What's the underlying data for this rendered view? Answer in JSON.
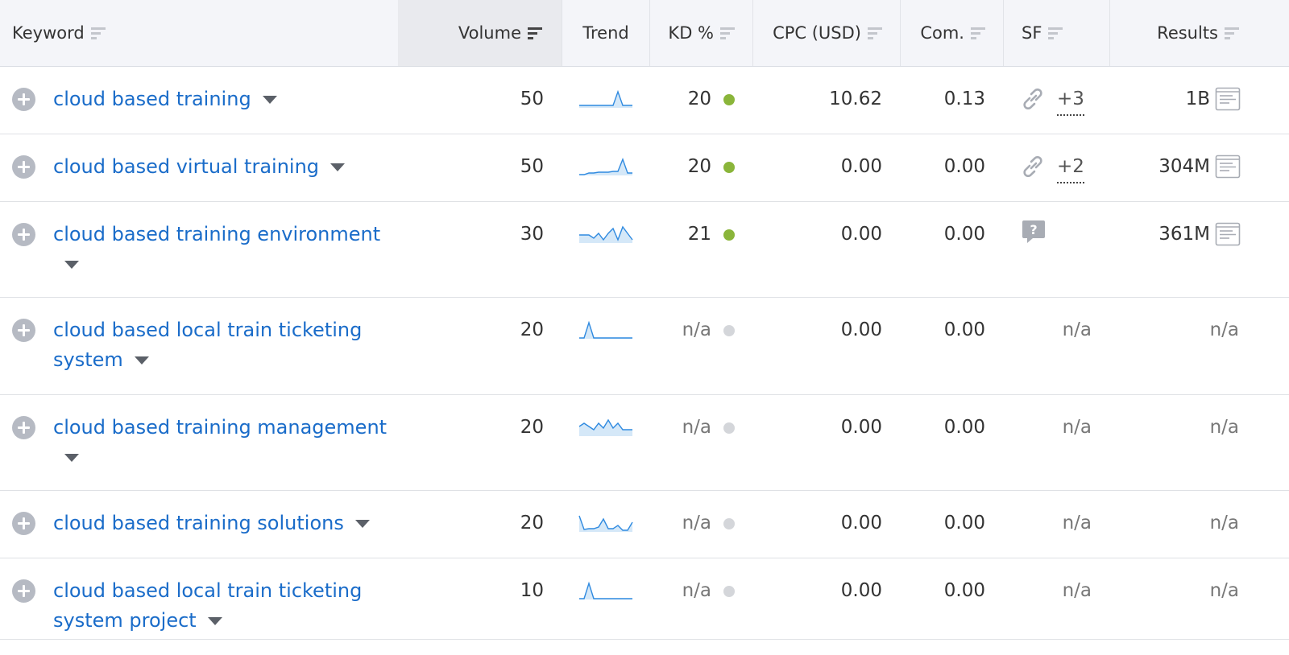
{
  "colors": {
    "link": "#1a6cc9",
    "kd_easy": "#8ab53a",
    "kd_na": "#d4d6da",
    "trend_line": "#2f8ae0",
    "trend_fill": "#d5e8f8"
  },
  "header": {
    "keyword": "Keyword",
    "volume": "Volume",
    "trend": "Trend",
    "kd": "KD %",
    "cpc": "CPC (USD)",
    "com": "Com.",
    "sf": "SF",
    "results": "Results"
  },
  "sort_column": "volume",
  "rows": [
    {
      "keyword": "cloud based training",
      "volume": "50",
      "trend": [
        0.15,
        0.15,
        0.15,
        0.15,
        0.15,
        0.15,
        0.15,
        0.15,
        1.0,
        0.15,
        0.15,
        0.15
      ],
      "kd": "20",
      "kd_status": "easy",
      "cpc": "10.62",
      "com": "0.13",
      "sf_icon": "link-icon",
      "sf_extra": "+3",
      "results": "1B",
      "results_icon": "serp-page-icon"
    },
    {
      "keyword": "cloud based virtual training",
      "volume": "50",
      "trend": [
        0.05,
        0.05,
        0.15,
        0.15,
        0.2,
        0.2,
        0.2,
        0.25,
        0.25,
        1.0,
        0.15,
        0.15
      ],
      "kd": "20",
      "kd_status": "easy",
      "cpc": "0.00",
      "com": "0.00",
      "sf_icon": "link-icon",
      "sf_extra": "+2",
      "results": "304M",
      "results_icon": "serp-page-icon"
    },
    {
      "keyword": "cloud based training environment",
      "volume": "30",
      "trend": [
        0.5,
        0.5,
        0.5,
        0.3,
        0.6,
        0.2,
        0.6,
        0.9,
        0.2,
        1.0,
        0.6,
        0.2
      ],
      "kd": "21",
      "kd_status": "easy",
      "cpc": "0.00",
      "com": "0.00",
      "sf_icon": "qa-icon",
      "sf_extra": "",
      "results": "361M",
      "results_icon": "serp-page-icon"
    },
    {
      "keyword": "cloud based local train ticketing system",
      "volume": "20",
      "trend": [
        0.05,
        0.05,
        1.0,
        0.05,
        0.05,
        0.05,
        0.05,
        0.05,
        0.05,
        0.05,
        0.05,
        0.05
      ],
      "kd": "n/a",
      "kd_status": "na",
      "cpc": "0.00",
      "com": "0.00",
      "sf_icon": "",
      "sf_extra": "",
      "sf_text": "n/a",
      "results": "n/a",
      "results_icon": ""
    },
    {
      "keyword": "cloud based training management",
      "volume": "20",
      "trend": [
        0.6,
        0.8,
        0.6,
        0.4,
        0.8,
        0.5,
        1.0,
        0.5,
        0.8,
        0.4,
        0.4,
        0.4
      ],
      "kd": "n/a",
      "kd_status": "na",
      "cpc": "0.00",
      "com": "0.00",
      "sf_icon": "",
      "sf_extra": "",
      "sf_text": "n/a",
      "results": "n/a",
      "results_icon": ""
    },
    {
      "keyword": "cloud based training solutions",
      "volume": "20",
      "trend": [
        1.0,
        0.15,
        0.2,
        0.2,
        0.3,
        0.8,
        0.2,
        0.2,
        0.4,
        0.1,
        0.1,
        0.6
      ],
      "kd": "n/a",
      "kd_status": "na",
      "cpc": "0.00",
      "com": "0.00",
      "sf_icon": "",
      "sf_extra": "",
      "sf_text": "n/a",
      "results": "n/a",
      "results_icon": ""
    },
    {
      "keyword": "cloud based local train ticketing system project",
      "volume": "10",
      "trend": [
        0.05,
        0.05,
        1.0,
        0.05,
        0.05,
        0.05,
        0.05,
        0.05,
        0.05,
        0.05,
        0.05,
        0.05
      ],
      "kd": "n/a",
      "kd_status": "na",
      "cpc": "0.00",
      "com": "0.00",
      "sf_icon": "",
      "sf_extra": "",
      "sf_text": "n/a",
      "results": "n/a",
      "results_icon": ""
    }
  ]
}
